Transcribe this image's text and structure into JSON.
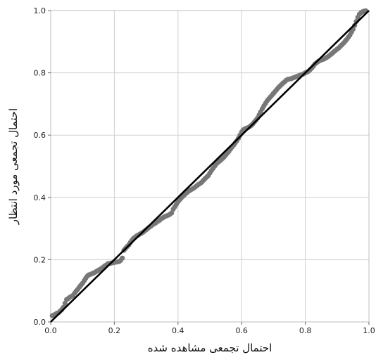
{
  "chart_data": {
    "type": "scatter",
    "title": "",
    "xlabel": "احتمال تجمعی مشاهده شده",
    "ylabel": "احتمال تجمعی مورد انتظار",
    "xlim": [
      0,
      1
    ],
    "ylim": [
      0,
      1
    ],
    "x_ticks": [
      0.0,
      0.2,
      0.4,
      0.6,
      0.8,
      1.0
    ],
    "y_ticks": [
      0.0,
      0.2,
      0.4,
      0.6,
      0.8,
      1.0
    ],
    "x_tick_labels": [
      "0.0",
      "0.2",
      "0.4",
      "0.6",
      "0.8",
      "1.0"
    ],
    "y_tick_labels": [
      "0.0",
      "0.2",
      "0.4",
      "0.6",
      "0.8",
      "1.0"
    ],
    "grid": true,
    "point_color": "#777777",
    "line_color": "#000000",
    "reference_line": [
      [
        0,
        0
      ],
      [
        1,
        1
      ]
    ],
    "points": [
      [
        0.005,
        0.02
      ],
      [
        0.01,
        0.022
      ],
      [
        0.015,
        0.025
      ],
      [
        0.02,
        0.028
      ],
      [
        0.025,
        0.03
      ],
      [
        0.03,
        0.035
      ],
      [
        0.035,
        0.04
      ],
      [
        0.04,
        0.047
      ],
      [
        0.045,
        0.06
      ],
      [
        0.05,
        0.072
      ],
      [
        0.055,
        0.075
      ],
      [
        0.06,
        0.079
      ],
      [
        0.065,
        0.082
      ],
      [
        0.07,
        0.085
      ],
      [
        0.075,
        0.092
      ],
      [
        0.08,
        0.099
      ],
      [
        0.085,
        0.105
      ],
      [
        0.09,
        0.112
      ],
      [
        0.095,
        0.118
      ],
      [
        0.1,
        0.124
      ],
      [
        0.105,
        0.132
      ],
      [
        0.11,
        0.14
      ],
      [
        0.115,
        0.147
      ],
      [
        0.12,
        0.151
      ],
      [
        0.125,
        0.153
      ],
      [
        0.13,
        0.155
      ],
      [
        0.135,
        0.157
      ],
      [
        0.14,
        0.16
      ],
      [
        0.145,
        0.163
      ],
      [
        0.15,
        0.166
      ],
      [
        0.155,
        0.169
      ],
      [
        0.16,
        0.172
      ],
      [
        0.165,
        0.176
      ],
      [
        0.17,
        0.18
      ],
      [
        0.175,
        0.183
      ],
      [
        0.18,
        0.187
      ],
      [
        0.185,
        0.188
      ],
      [
        0.19,
        0.189
      ],
      [
        0.195,
        0.19
      ],
      [
        0.2,
        0.191
      ],
      [
        0.205,
        0.192
      ],
      [
        0.21,
        0.193
      ],
      [
        0.215,
        0.194
      ],
      [
        0.22,
        0.198
      ],
      [
        0.225,
        0.205
      ],
      [
        0.23,
        0.23
      ],
      [
        0.235,
        0.236
      ],
      [
        0.24,
        0.242
      ],
      [
        0.245,
        0.247
      ],
      [
        0.25,
        0.255
      ],
      [
        0.255,
        0.262
      ],
      [
        0.26,
        0.268
      ],
      [
        0.265,
        0.272
      ],
      [
        0.27,
        0.276
      ],
      [
        0.275,
        0.279
      ],
      [
        0.28,
        0.282
      ],
      [
        0.285,
        0.285
      ],
      [
        0.29,
        0.288
      ],
      [
        0.295,
        0.292
      ],
      [
        0.3,
        0.296
      ],
      [
        0.305,
        0.3
      ],
      [
        0.31,
        0.304
      ],
      [
        0.315,
        0.308
      ],
      [
        0.32,
        0.312
      ],
      [
        0.325,
        0.315
      ],
      [
        0.33,
        0.318
      ],
      [
        0.335,
        0.322
      ],
      [
        0.34,
        0.325
      ],
      [
        0.345,
        0.329
      ],
      [
        0.35,
        0.333
      ],
      [
        0.355,
        0.336
      ],
      [
        0.36,
        0.339
      ],
      [
        0.365,
        0.341
      ],
      [
        0.37,
        0.343
      ],
      [
        0.375,
        0.346
      ],
      [
        0.38,
        0.35
      ],
      [
        0.385,
        0.362
      ],
      [
        0.39,
        0.37
      ],
      [
        0.395,
        0.378
      ],
      [
        0.4,
        0.386
      ],
      [
        0.405,
        0.392
      ],
      [
        0.41,
        0.398
      ],
      [
        0.415,
        0.403
      ],
      [
        0.42,
        0.408
      ],
      [
        0.425,
        0.413
      ],
      [
        0.43,
        0.417
      ],
      [
        0.435,
        0.421
      ],
      [
        0.44,
        0.424
      ],
      [
        0.445,
        0.427
      ],
      [
        0.45,
        0.43
      ],
      [
        0.455,
        0.434
      ],
      [
        0.46,
        0.438
      ],
      [
        0.465,
        0.442
      ],
      [
        0.47,
        0.445
      ],
      [
        0.475,
        0.449
      ],
      [
        0.48,
        0.455
      ],
      [
        0.485,
        0.46
      ],
      [
        0.49,
        0.465
      ],
      [
        0.495,
        0.47
      ],
      [
        0.5,
        0.478
      ],
      [
        0.505,
        0.486
      ],
      [
        0.51,
        0.493
      ],
      [
        0.515,
        0.5
      ],
      [
        0.52,
        0.507
      ],
      [
        0.525,
        0.512
      ],
      [
        0.53,
        0.516
      ],
      [
        0.535,
        0.52
      ],
      [
        0.54,
        0.525
      ],
      [
        0.545,
        0.53
      ],
      [
        0.55,
        0.536
      ],
      [
        0.555,
        0.542
      ],
      [
        0.56,
        0.548
      ],
      [
        0.565,
        0.555
      ],
      [
        0.57,
        0.562
      ],
      [
        0.575,
        0.568
      ],
      [
        0.58,
        0.575
      ],
      [
        0.585,
        0.582
      ],
      [
        0.59,
        0.59
      ],
      [
        0.595,
        0.6
      ],
      [
        0.6,
        0.61
      ],
      [
        0.605,
        0.617
      ],
      [
        0.61,
        0.62
      ],
      [
        0.615,
        0.622
      ],
      [
        0.62,
        0.624
      ],
      [
        0.625,
        0.627
      ],
      [
        0.63,
        0.631
      ],
      [
        0.635,
        0.636
      ],
      [
        0.64,
        0.642
      ],
      [
        0.645,
        0.648
      ],
      [
        0.65,
        0.655
      ],
      [
        0.655,
        0.665
      ],
      [
        0.66,
        0.675
      ],
      [
        0.665,
        0.685
      ],
      [
        0.67,
        0.694
      ],
      [
        0.675,
        0.702
      ],
      [
        0.68,
        0.71
      ],
      [
        0.685,
        0.716
      ],
      [
        0.69,
        0.722
      ],
      [
        0.695,
        0.728
      ],
      [
        0.7,
        0.734
      ],
      [
        0.705,
        0.74
      ],
      [
        0.71,
        0.746
      ],
      [
        0.715,
        0.752
      ],
      [
        0.72,
        0.757
      ],
      [
        0.725,
        0.762
      ],
      [
        0.73,
        0.767
      ],
      [
        0.735,
        0.771
      ],
      [
        0.74,
        0.776
      ],
      [
        0.745,
        0.779
      ],
      [
        0.75,
        0.78
      ],
      [
        0.755,
        0.781
      ],
      [
        0.76,
        0.783
      ],
      [
        0.765,
        0.785
      ],
      [
        0.77,
        0.787
      ],
      [
        0.775,
        0.789
      ],
      [
        0.78,
        0.791
      ],
      [
        0.785,
        0.793
      ],
      [
        0.79,
        0.795
      ],
      [
        0.795,
        0.797
      ],
      [
        0.8,
        0.8
      ],
      [
        0.805,
        0.802
      ],
      [
        0.81,
        0.805
      ],
      [
        0.815,
        0.81
      ],
      [
        0.82,
        0.815
      ],
      [
        0.825,
        0.821
      ],
      [
        0.83,
        0.828
      ],
      [
        0.835,
        0.832
      ],
      [
        0.84,
        0.836
      ],
      [
        0.845,
        0.839
      ],
      [
        0.85,
        0.841
      ],
      [
        0.855,
        0.843
      ],
      [
        0.86,
        0.845
      ],
      [
        0.865,
        0.848
      ],
      [
        0.87,
        0.851
      ],
      [
        0.875,
        0.855
      ],
      [
        0.88,
        0.859
      ],
      [
        0.885,
        0.863
      ],
      [
        0.89,
        0.868
      ],
      [
        0.895,
        0.872
      ],
      [
        0.9,
        0.876
      ],
      [
        0.905,
        0.88
      ],
      [
        0.91,
        0.885
      ],
      [
        0.915,
        0.89
      ],
      [
        0.92,
        0.895
      ],
      [
        0.925,
        0.901
      ],
      [
        0.93,
        0.907
      ],
      [
        0.935,
        0.914
      ],
      [
        0.94,
        0.921
      ],
      [
        0.945,
        0.93
      ],
      [
        0.95,
        0.94
      ],
      [
        0.955,
        0.952
      ],
      [
        0.96,
        0.965
      ],
      [
        0.965,
        0.978
      ],
      [
        0.97,
        0.988
      ],
      [
        0.975,
        0.993
      ],
      [
        0.98,
        0.996
      ],
      [
        0.985,
        0.998
      ],
      [
        0.99,
        0.999
      ]
    ]
  }
}
